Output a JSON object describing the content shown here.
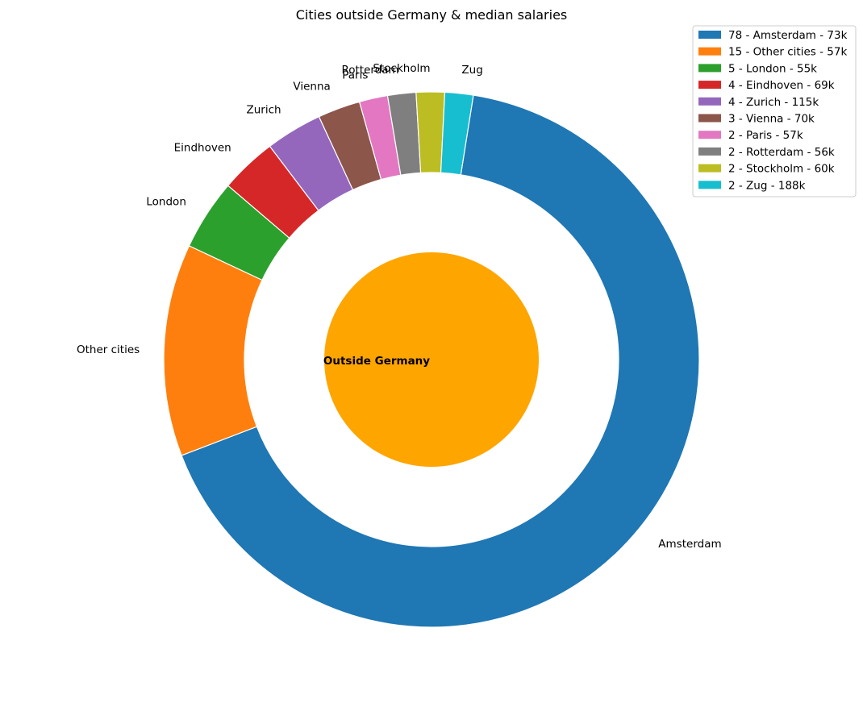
{
  "chart_data": {
    "type": "pie",
    "title": "Cities outside Germany & median salaries",
    "center_label": "Outside Germany",
    "inner_color": "#ffa500",
    "slices": [
      {
        "label": "Amsterdam",
        "value": 78,
        "legend": "78 - Amsterdam - 73k",
        "color": "#1f77b4"
      },
      {
        "label": "Other cities",
        "value": 15,
        "legend": "15 - Other cities - 57k",
        "color": "#ff7f0e"
      },
      {
        "label": "London",
        "value": 5,
        "legend": "5 - London - 55k",
        "color": "#2ca02c"
      },
      {
        "label": "Eindhoven",
        "value": 4,
        "legend": "4 - Eindhoven - 69k",
        "color": "#d62728"
      },
      {
        "label": "Zurich",
        "value": 4,
        "legend": "4 - Zurich - 115k",
        "color": "#9467bd"
      },
      {
        "label": "Vienna",
        "value": 3,
        "legend": "3 - Vienna - 70k",
        "color": "#8c564b"
      },
      {
        "label": "Paris",
        "value": 2,
        "legend": "2 - Paris - 57k",
        "color": "#e377c2"
      },
      {
        "label": "Rotterdam",
        "value": 2,
        "legend": "2 - Rotterdam - 56k",
        "color": "#7f7f7f"
      },
      {
        "label": "Stockholm",
        "value": 2,
        "legend": "2 - Stockholm - 60k",
        "color": "#bcbd22"
      },
      {
        "label": "Zug",
        "value": 2,
        "legend": "2 - Zug - 188k",
        "color": "#17becf"
      }
    ],
    "start_angle_deg": 81,
    "direction": "clockwise",
    "legend_position": "upper-right"
  }
}
